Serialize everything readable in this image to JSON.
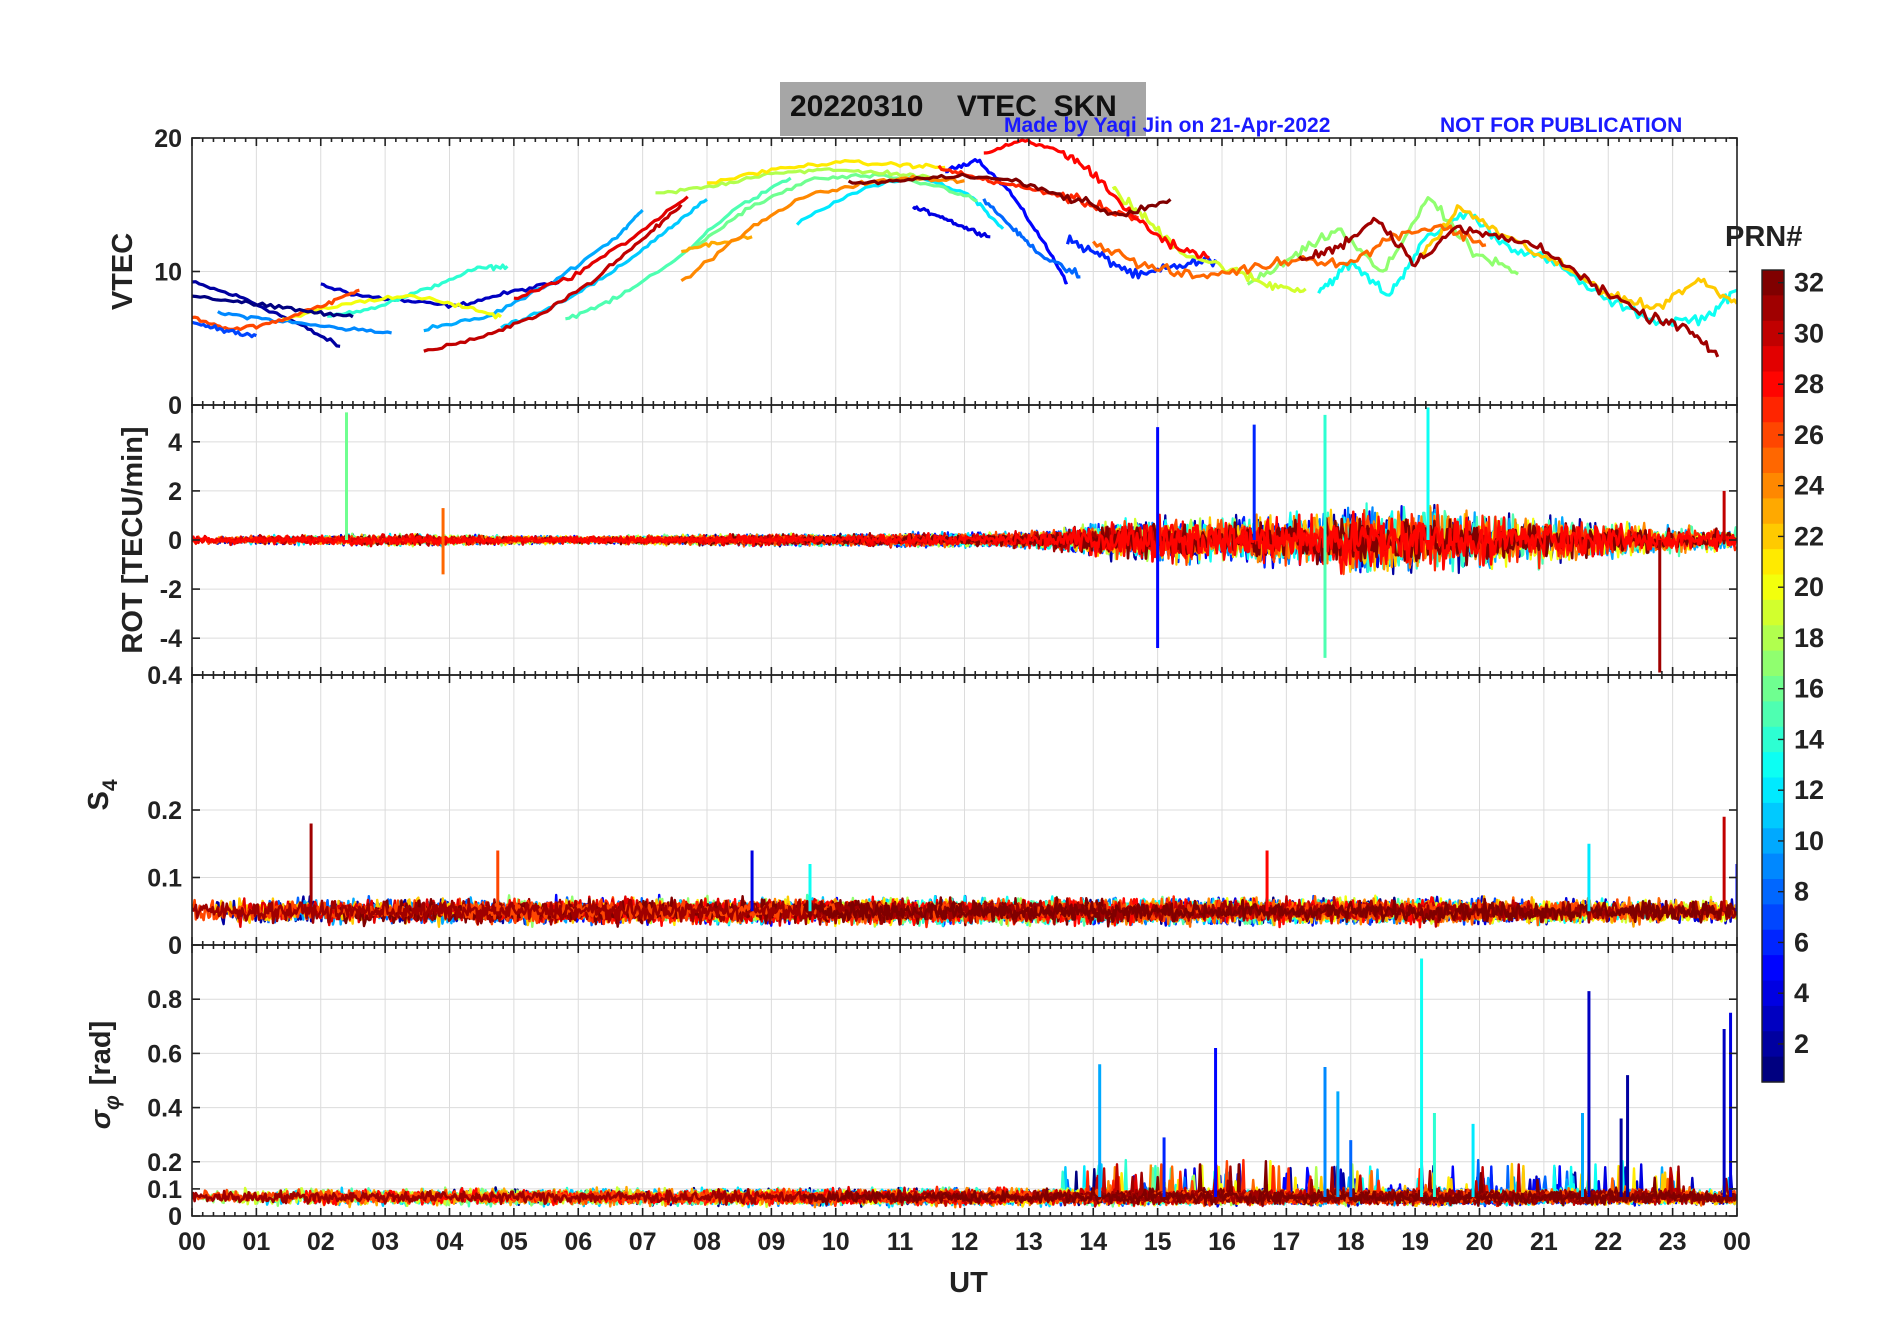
{
  "header": {
    "title": "20220310    VTEC  SKN",
    "credit": "Made by Yaqi Jin on 21-Apr-2022",
    "notice": "NOT FOR PUBLICATION"
  },
  "colors": {
    "title_box": "#a6a6a6",
    "credit_text": "#1a1aff",
    "grid": "#dcdcdc",
    "axes": "#222222"
  },
  "colorbar": {
    "label": "PRN#",
    "ticks": [
      "2",
      "4",
      "6",
      "8",
      "10",
      "12",
      "14",
      "16",
      "18",
      "20",
      "22",
      "24",
      "26",
      "28",
      "30",
      "32"
    ],
    "range": [
      1,
      32
    ],
    "colormap": "jet"
  },
  "chart_data": [
    {
      "type": "line",
      "panel": "vtec",
      "ylabel": "VTEC",
      "xlim": [
        0,
        24
      ],
      "ylim": [
        0,
        20
      ],
      "yticks": [
        "0",
        "10",
        "20"
      ],
      "ytick_values": [
        0,
        10,
        20
      ],
      "x_tick_labels_shown": false,
      "grid": true,
      "series_count": 32,
      "series": [
        {
          "prn": 2,
          "x": [
            0.0,
            0.8,
            1.6,
            2.3
          ],
          "y": [
            9.2,
            8.0,
            6.2,
            4.4
          ]
        },
        {
          "prn": 3,
          "x": [
            2.0,
            2.6,
            3.3,
            4.1,
            4.9,
            5.7
          ],
          "y": [
            9.0,
            8.2,
            7.8,
            7.4,
            8.4,
            9.2
          ]
        },
        {
          "prn": 5,
          "x": [
            11.7,
            12.2,
            12.7,
            13.2,
            13.6
          ],
          "y": [
            17.5,
            18.4,
            16.0,
            12.4,
            9.2
          ]
        },
        {
          "prn": 6,
          "x": [
            13.6,
            14.1,
            14.7,
            15.3,
            15.9
          ],
          "y": [
            12.4,
            11.2,
            9.6,
            10.4,
            10.9
          ]
        },
        {
          "prn": 4,
          "x": [
            11.2,
            11.6,
            12.0,
            12.4
          ],
          "y": [
            14.8,
            14.2,
            13.3,
            12.6
          ]
        },
        {
          "prn": 8,
          "x": [
            12.3,
            12.8,
            13.2,
            13.8
          ],
          "y": [
            15.4,
            13.0,
            11.2,
            9.6
          ]
        },
        {
          "prn": 9,
          "x": [
            0.4,
            1.2,
            2.2,
            3.1
          ],
          "y": [
            6.9,
            6.4,
            5.8,
            5.4
          ]
        },
        {
          "prn": 10,
          "x": [
            3.6,
            4.6,
            5.6,
            6.6,
            7.0
          ],
          "y": [
            5.7,
            6.6,
            9.2,
            12.6,
            14.6
          ]
        },
        {
          "prn": 11,
          "x": [
            4.8,
            5.6,
            6.5,
            7.3,
            8.0
          ],
          "y": [
            5.8,
            7.4,
            9.8,
            12.8,
            15.4
          ]
        },
        {
          "prn": 12,
          "x": [
            9.4,
            10.4,
            11.3,
            12.1,
            12.6
          ],
          "y": [
            13.6,
            16.2,
            17.1,
            15.7,
            13.2
          ]
        },
        {
          "prn": 13,
          "x": [
            17.5,
            18.0,
            18.6,
            19.1,
            19.8,
            20.4,
            21.1,
            22.0,
            22.8,
            23.5,
            24.0
          ],
          "y": [
            8.5,
            10.6,
            8.2,
            12.1,
            14.5,
            12.0,
            10.8,
            7.8,
            6.2,
            6.5,
            8.6
          ]
        },
        {
          "prn": 14,
          "x": [
            2.1,
            2.9,
            3.6,
            4.4,
            4.9
          ],
          "y": [
            6.6,
            7.4,
            8.6,
            10.2,
            10.4
          ]
        },
        {
          "prn": 15,
          "x": [
            5.8,
            6.6,
            7.5,
            8.4,
            9.3
          ],
          "y": [
            6.4,
            8.0,
            10.8,
            14.6,
            17.0
          ]
        },
        {
          "prn": 16,
          "x": [
            7.8,
            8.6,
            9.6,
            10.6,
            11.6,
            12.2
          ],
          "y": [
            11.8,
            14.6,
            16.9,
            17.2,
            16.4,
            15.3
          ]
        },
        {
          "prn": 17,
          "x": [
            16.4,
            17.1,
            17.8,
            18.5,
            19.2,
            19.9,
            20.6
          ],
          "y": [
            9.0,
            11.0,
            13.2,
            9.8,
            15.6,
            11.4,
            9.8
          ]
        },
        {
          "prn": 18,
          "x": [
            7.2,
            8.1,
            9.0,
            9.9,
            10.8,
            11.5
          ],
          "y": [
            15.8,
            16.4,
            17.4,
            17.6,
            17.4,
            17.0
          ]
        },
        {
          "prn": 19,
          "x": [
            14.3,
            14.8,
            15.4,
            16.1,
            16.7,
            17.3
          ],
          "y": [
            16.2,
            14.0,
            11.4,
            10.2,
            9.0,
            8.7
          ]
        },
        {
          "prn": 20,
          "x": [
            1.4,
            2.4,
            3.4,
            4.2,
            4.8
          ],
          "y": [
            6.4,
            7.6,
            8.2,
            7.4,
            6.6
          ]
        },
        {
          "prn": 21,
          "x": [
            8.0,
            9.0,
            10.0,
            11.0,
            11.7
          ],
          "y": [
            16.6,
            17.6,
            18.2,
            18.0,
            17.8
          ]
        },
        {
          "prn": 22,
          "x": [
            19.1,
            19.7,
            20.4,
            21.2,
            22.0,
            22.7,
            23.4,
            24.0
          ],
          "y": [
            11.2,
            14.8,
            12.6,
            10.6,
            8.4,
            7.2,
            9.4,
            7.6
          ]
        },
        {
          "prn": 23,
          "x": [
            7.6,
            8.2,
            8.7
          ],
          "y": [
            11.6,
            12.2,
            12.6
          ]
        },
        {
          "prn": 24,
          "x": [
            7.6,
            8.6,
            9.5,
            10.4,
            11.2,
            12.0
          ],
          "y": [
            9.2,
            13.0,
            15.6,
            16.6,
            17.0,
            16.8
          ]
        },
        {
          "prn": 25,
          "x": [
            14.0,
            14.8,
            15.6,
            16.4,
            17.2,
            18.0,
            18.7,
            19.4,
            20.1
          ],
          "y": [
            12.2,
            10.4,
            9.6,
            10.2,
            11.0,
            10.6,
            12.8,
            13.4,
            12.0
          ]
        },
        {
          "prn": 26,
          "x": [
            0.0,
            0.6,
            1.3,
            2.0,
            2.6
          ],
          "y": [
            6.6,
            5.6,
            6.2,
            7.4,
            8.6
          ]
        },
        {
          "prn": 27,
          "x": [
            11.6,
            12.2,
            12.8,
            13.4,
            14.0,
            14.7
          ],
          "y": [
            17.8,
            17.0,
            16.4,
            15.8,
            15.0,
            14.0
          ]
        },
        {
          "prn": 28,
          "x": [
            12.3,
            12.9,
            13.5,
            14.0,
            14.6,
            15.2,
            15.8
          ],
          "y": [
            18.8,
            19.8,
            19.0,
            17.4,
            14.2,
            12.0,
            11.0
          ]
        },
        {
          "prn": 29,
          "x": [
            5.0,
            5.9,
            6.8,
            7.7
          ],
          "y": [
            8.0,
            9.6,
            12.4,
            15.6
          ]
        },
        {
          "prn": 30,
          "x": [
            3.6,
            4.6,
            5.4,
            6.2,
            7.0,
            7.6
          ],
          "y": [
            4.0,
            5.2,
            6.8,
            9.2,
            12.4,
            15.0
          ]
        },
        {
          "prn": 31,
          "x": [
            17.2,
            17.8,
            18.4,
            19.0,
            19.6,
            20.3,
            21.0,
            21.8,
            22.6,
            23.2,
            23.7
          ],
          "y": [
            10.8,
            11.8,
            14.0,
            10.6,
            13.2,
            12.6,
            11.8,
            8.8,
            6.6,
            5.8,
            3.6
          ]
        },
        {
          "prn": 32,
          "x": [
            10.2,
            11.0,
            11.9,
            12.8,
            13.6,
            14.4,
            15.2
          ],
          "y": [
            16.6,
            16.8,
            17.2,
            16.8,
            15.6,
            14.2,
            15.4
          ]
        },
        {
          "prn": 1,
          "x": [
            0.0,
            0.9,
            1.8,
            2.5
          ],
          "y": [
            8.2,
            7.6,
            7.0,
            6.6
          ]
        },
        {
          "prn": 7,
          "x": [
            0.0,
            0.5,
            1.0
          ],
          "y": [
            6.2,
            5.6,
            5.2
          ]
        }
      ]
    },
    {
      "type": "line",
      "panel": "rot",
      "ylabel": "ROT [TECU/min]",
      "xlim": [
        0,
        24
      ],
      "ylim": [
        -5.5,
        5.5
      ],
      "yticks": [
        "-4",
        "-2",
        "0",
        "2",
        "4"
      ],
      "ytick_values": [
        -4,
        -2,
        0,
        2,
        4
      ],
      "x_tick_labels_shown": false,
      "grid": true,
      "envelope": {
        "x": [
          0,
          1,
          2,
          3,
          4,
          5,
          6,
          7,
          8,
          9,
          10,
          11,
          12,
          13,
          14,
          15,
          16,
          17,
          18,
          19,
          20,
          21,
          22,
          23,
          24
        ],
        "amplitude": [
          0.35,
          0.35,
          0.4,
          0.45,
          0.4,
          0.35,
          0.3,
          0.35,
          0.4,
          0.45,
          0.4,
          0.5,
          0.5,
          0.6,
          1.2,
          1.8,
          1.6,
          1.8,
          2.4,
          2.6,
          2.2,
          1.8,
          1.4,
          1.0,
          0.9
        ]
      },
      "spikes": [
        {
          "x": 2.4,
          "y": 5.2,
          "prn": 16
        },
        {
          "x": 3.9,
          "y": 1.3,
          "prn": 25
        },
        {
          "x": 3.9,
          "y": -1.4,
          "prn": 25
        },
        {
          "x": 15.0,
          "y": 4.6,
          "prn": 5
        },
        {
          "x": 15.0,
          "y": -4.4,
          "prn": 5
        },
        {
          "x": 16.5,
          "y": 4.7,
          "prn": 6
        },
        {
          "x": 17.6,
          "y": 5.1,
          "prn": 14
        },
        {
          "x": 17.6,
          "y": -4.8,
          "prn": 15
        },
        {
          "x": 19.2,
          "y": 5.4,
          "prn": 13
        },
        {
          "x": 22.8,
          "y": -5.4,
          "prn": 31
        },
        {
          "x": 23.8,
          "y": 2.0,
          "prn": 30
        }
      ]
    },
    {
      "type": "line",
      "panel": "s4",
      "ylabel": "S4",
      "ylabel_main": "S",
      "ylabel_sub": "4",
      "xlim": [
        0,
        24
      ],
      "ylim": [
        0,
        0.4
      ],
      "yticks": [
        "0",
        "0.1",
        "0.2",
        "0.4"
      ],
      "ytick_values": [
        0,
        0.1,
        0.2,
        0.4
      ],
      "x_tick_labels_shown": false,
      "grid": true,
      "baseline": {
        "mean": 0.05,
        "spread": 0.025
      },
      "spikes": [
        {
          "x": 1.85,
          "y": 0.18,
          "prn": 31
        },
        {
          "x": 4.75,
          "y": 0.14,
          "prn": 26
        },
        {
          "x": 8.7,
          "y": 0.14,
          "prn": 4
        },
        {
          "x": 9.6,
          "y": 0.12,
          "prn": 13
        },
        {
          "x": 16.7,
          "y": 0.14,
          "prn": 28
        },
        {
          "x": 21.7,
          "y": 0.15,
          "prn": 12
        },
        {
          "x": 23.8,
          "y": 0.19,
          "prn": 30
        },
        {
          "x": 24.0,
          "y": 0.12,
          "prn": 5
        }
      ]
    },
    {
      "type": "line",
      "panel": "sigma_phi",
      "ylabel": "σφ [rad]",
      "ylabel_main": "σ",
      "ylabel_sub": "φ",
      "ylabel_unit": "[rad]",
      "xlim": [
        0,
        24
      ],
      "xlabel": "UT",
      "xticks": [
        "00",
        "01",
        "02",
        "03",
        "04",
        "05",
        "06",
        "07",
        "08",
        "09",
        "10",
        "11",
        "12",
        "13",
        "14",
        "15",
        "16",
        "17",
        "18",
        "19",
        "20",
        "21",
        "22",
        "23",
        "00"
      ],
      "xtick_values": [
        0,
        1,
        2,
        3,
        4,
        5,
        6,
        7,
        8,
        9,
        10,
        11,
        12,
        13,
        14,
        15,
        16,
        17,
        18,
        19,
        20,
        21,
        22,
        23,
        24
      ],
      "ylim": [
        0,
        1.0
      ],
      "yticks": [
        "0",
        "0.1",
        "0.2",
        "0.4",
        "0.6",
        "0.8"
      ],
      "ytick_values": [
        0,
        0.1,
        0.2,
        0.4,
        0.6,
        0.8
      ],
      "grid": true,
      "baseline": {
        "mean": 0.07,
        "spread": 0.04
      },
      "spikes": [
        {
          "x": 14.1,
          "y": 0.56,
          "prn": 10
        },
        {
          "x": 15.1,
          "y": 0.29,
          "prn": 6
        },
        {
          "x": 15.9,
          "y": 0.62,
          "prn": 5
        },
        {
          "x": 17.6,
          "y": 0.55,
          "prn": 9
        },
        {
          "x": 17.8,
          "y": 0.46,
          "prn": 10
        },
        {
          "x": 18.0,
          "y": 0.28,
          "prn": 8
        },
        {
          "x": 19.1,
          "y": 0.95,
          "prn": 13
        },
        {
          "x": 19.3,
          "y": 0.38,
          "prn": 14
        },
        {
          "x": 19.9,
          "y": 0.34,
          "prn": 12
        },
        {
          "x": 21.6,
          "y": 0.38,
          "prn": 10
        },
        {
          "x": 21.7,
          "y": 0.83,
          "prn": 3
        },
        {
          "x": 22.2,
          "y": 0.36,
          "prn": 2
        },
        {
          "x": 22.3,
          "y": 0.52,
          "prn": 2
        },
        {
          "x": 23.8,
          "y": 0.69,
          "prn": 3
        },
        {
          "x": 23.9,
          "y": 0.75,
          "prn": 4
        }
      ]
    }
  ]
}
